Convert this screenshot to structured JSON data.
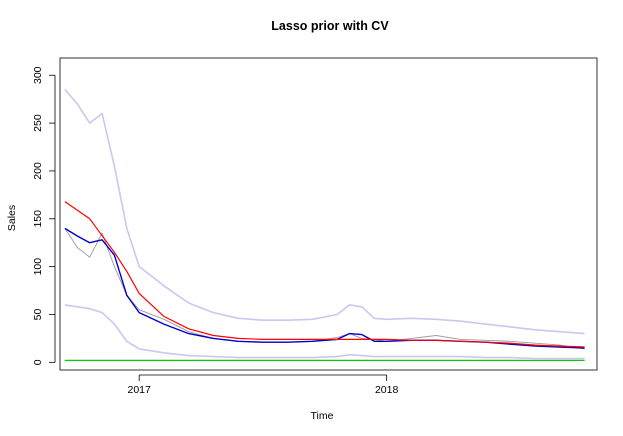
{
  "chart_data": {
    "type": "line",
    "title": "Lasso prior with CV",
    "xlabel": "Time",
    "ylabel": "Sales",
    "xlim": [
      2016.68,
      2018.85
    ],
    "ylim": [
      -8,
      318
    ],
    "x_ticks": [
      {
        "value": 2017,
        "label": "2017"
      },
      {
        "value": 2018,
        "label": "2018"
      }
    ],
    "y_ticks": [
      {
        "value": 0,
        "label": "0"
      },
      {
        "value": 50,
        "label": "50"
      },
      {
        "value": 100,
        "label": "100"
      },
      {
        "value": 150,
        "label": "150"
      },
      {
        "value": 200,
        "label": "200"
      },
      {
        "value": 250,
        "label": "250"
      },
      {
        "value": 300,
        "label": "300"
      }
    ],
    "grid": false,
    "legend": "none",
    "colors": {
      "observed": "#9a9a9a",
      "forecast": "#0000cc",
      "interval": "#c8c8f0",
      "trend": "#ff0000",
      "baseline": "#00cc00"
    },
    "series": [
      {
        "role": "observed",
        "x": [
          2016.7,
          2016.75,
          2016.8,
          2016.85,
          2016.9,
          2016.95,
          2017.0,
          2017.1,
          2017.2,
          2017.3,
          2017.4,
          2017.5,
          2017.6,
          2017.7,
          2017.8,
          2017.85,
          2017.9,
          2017.95,
          2018.0,
          2018.1,
          2018.2,
          2018.3,
          2018.4,
          2018.5,
          2018.6,
          2018.7,
          2018.8
        ],
        "y": [
          140,
          120,
          110,
          135,
          100,
          70,
          55,
          45,
          32,
          25,
          22,
          21,
          21,
          22,
          26,
          30,
          25,
          24,
          22,
          25,
          28,
          24,
          23,
          22,
          20,
          18,
          14
        ]
      },
      {
        "role": "forecast",
        "x": [
          2016.7,
          2016.75,
          2016.8,
          2016.85,
          2016.9,
          2016.95,
          2017.0,
          2017.1,
          2017.2,
          2017.3,
          2017.4,
          2017.5,
          2017.6,
          2017.7,
          2017.8,
          2017.85,
          2017.9,
          2017.95,
          2018.0,
          2018.1,
          2018.2,
          2018.3,
          2018.4,
          2018.5,
          2018.6,
          2018.7,
          2018.8
        ],
        "y": [
          140,
          132,
          125,
          128,
          112,
          70,
          52,
          40,
          30,
          25,
          22,
          21,
          21,
          22,
          24,
          30,
          29,
          22,
          22,
          23,
          23,
          22,
          21,
          19,
          17,
          16,
          15
        ]
      },
      {
        "role": "interval-upper",
        "x": [
          2016.7,
          2016.75,
          2016.8,
          2016.85,
          2016.9,
          2016.95,
          2017.0,
          2017.1,
          2017.2,
          2017.3,
          2017.4,
          2017.5,
          2017.6,
          2017.7,
          2017.8,
          2017.85,
          2017.9,
          2017.95,
          2018.0,
          2018.1,
          2018.2,
          2018.3,
          2018.4,
          2018.5,
          2018.6,
          2018.7,
          2018.8
        ],
        "y": [
          285,
          270,
          250,
          260,
          205,
          140,
          100,
          80,
          62,
          52,
          46,
          44,
          44,
          45,
          50,
          60,
          58,
          46,
          45,
          46,
          45,
          43,
          40,
          37,
          34,
          32,
          30
        ]
      },
      {
        "role": "interval-lower",
        "x": [
          2016.7,
          2016.75,
          2016.8,
          2016.85,
          2016.9,
          2016.95,
          2017.0,
          2017.1,
          2017.2,
          2017.3,
          2017.4,
          2017.5,
          2017.6,
          2017.7,
          2017.8,
          2017.85,
          2017.9,
          2017.95,
          2018.0,
          2018.1,
          2018.2,
          2018.3,
          2018.4,
          2018.5,
          2018.6,
          2018.7,
          2018.8
        ],
        "y": [
          60,
          58,
          56,
          52,
          40,
          22,
          14,
          10,
          7,
          6,
          5,
          5,
          5,
          5,
          6,
          8,
          7,
          6,
          6,
          6,
          6,
          6,
          5,
          5,
          4,
          4,
          4
        ]
      },
      {
        "role": "trend",
        "x": [
          2016.7,
          2016.8,
          2016.9,
          2016.95,
          2017.0,
          2017.1,
          2017.2,
          2017.3,
          2017.4,
          2017.5,
          2017.7,
          2017.9,
          2018.0,
          2018.1,
          2018.2,
          2018.3,
          2018.4,
          2018.5,
          2018.6,
          2018.7,
          2018.8
        ],
        "y": [
          168,
          150,
          115,
          95,
          72,
          48,
          35,
          28,
          25,
          24,
          24,
          24,
          24,
          23,
          23,
          22,
          21,
          20,
          18,
          17,
          16
        ]
      },
      {
        "role": "baseline",
        "x": [
          2016.7,
          2018.8
        ],
        "y": [
          2,
          2
        ]
      }
    ]
  }
}
